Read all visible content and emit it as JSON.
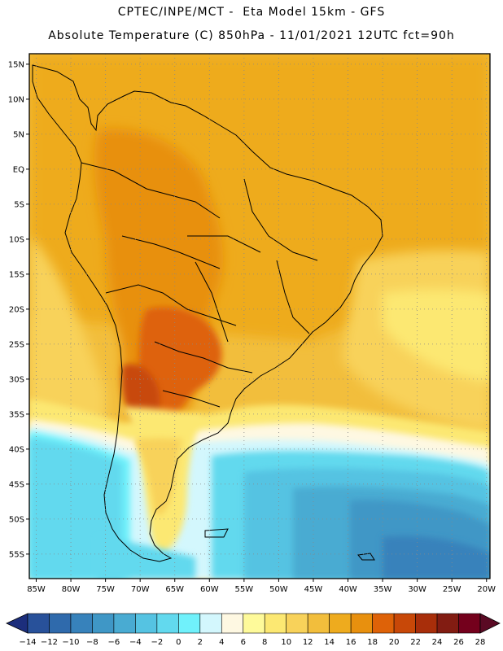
{
  "header": {
    "line1": "CPTEC/INPE/MCT -  Eta Model 15km - GFS",
    "line2": "Absolute Temperature (C) 850hPa - 11/01/2021 12UTC fct=90h"
  },
  "axes": {
    "lat_labels": [
      "15N",
      "10N",
      "5N",
      "EQ",
      "5S",
      "10S",
      "15S",
      "20S",
      "25S",
      "30S",
      "35S",
      "40S",
      "45S",
      "50S",
      "55S"
    ],
    "lat_values": [
      15,
      10,
      5,
      0,
      -5,
      -10,
      -15,
      -20,
      -25,
      -30,
      -35,
      -40,
      -45,
      -50,
      -55
    ],
    "lon_labels": [
      "85W",
      "80W",
      "75W",
      "70W",
      "65W",
      "60W",
      "55W",
      "50W",
      "45W",
      "40W",
      "35W",
      "30W",
      "25W",
      "20W"
    ],
    "lon_values": [
      -85,
      -80,
      -75,
      -70,
      -65,
      -60,
      -55,
      -50,
      -45,
      -40,
      -35,
      -30,
      -25,
      -20
    ],
    "lon_range": [
      -86,
      -19.5
    ],
    "lat_range": [
      -58.5,
      16.5
    ]
  },
  "colorbar": {
    "tick_labels": [
      "-14",
      "-12",
      "-10",
      "-8",
      "-6",
      "-4",
      "-2",
      "0",
      "2",
      "4",
      "6",
      "8",
      "10",
      "12",
      "14",
      "16",
      "18",
      "20",
      "22",
      "24",
      "26",
      "28"
    ],
    "colors": [
      "#1c2e7c",
      "#28519a",
      "#2f6aac",
      "#3782bb",
      "#3f97c6",
      "#49abd2",
      "#55c3e2",
      "#62d9ee",
      "#70f1fb",
      "#d3f7fd",
      "#fef8e2",
      "#fefa9a",
      "#fce872",
      "#f8d25a",
      "#f2be3c",
      "#eeab1e",
      "#e8900e",
      "#de6208",
      "#c84808",
      "#a82e0a",
      "#821c12",
      "#74001c",
      "#5a0a24"
    ]
  },
  "field": {
    "colors_that_matter": {
      "warm_land": "#eeab1e",
      "hot_core": "#de6208",
      "tropical_ocean": "#f2be3c",
      "mid_ocean": "#fce872",
      "cool_ocean": "#62d9ee",
      "cold_ocean": "#3f97c6"
    }
  }
}
